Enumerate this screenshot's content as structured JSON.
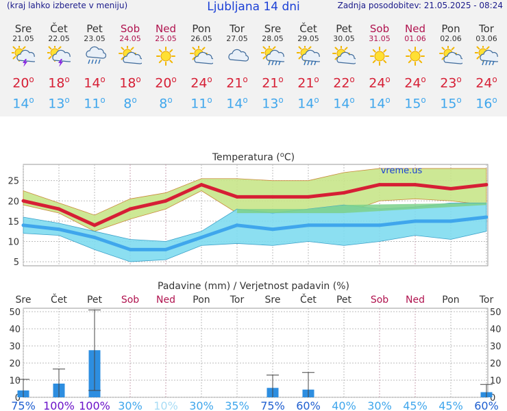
{
  "header": {
    "left_note": "(kraj lahko izberete v meniju)",
    "title": "Ljubljana 14 dni",
    "updated": "Zadnja posodobitev: 21.05.2025 - 08:24"
  },
  "days": [
    {
      "name": "Sre",
      "date": "21.05",
      "weekend": false,
      "icon": "sun-cloud-thunder-icon",
      "tmax": "20",
      "tmin": "14"
    },
    {
      "name": "Čet",
      "date": "22.05",
      "weekend": false,
      "icon": "sun-cloud-thunder-icon",
      "tmax": "18",
      "tmin": "13"
    },
    {
      "name": "Pet",
      "date": "23.05",
      "weekend": false,
      "icon": "cloud-rain-icon",
      "tmax": "14",
      "tmin": "11"
    },
    {
      "name": "Sob",
      "date": "24.05",
      "weekend": true,
      "icon": "sun-cloud-icon",
      "tmax": "18",
      "tmin": "8"
    },
    {
      "name": "Ned",
      "date": "25.05",
      "weekend": true,
      "icon": "sun-icon",
      "tmax": "20",
      "tmin": "8"
    },
    {
      "name": "Pon",
      "date": "26.05",
      "weekend": false,
      "icon": "sun-cloud-icon",
      "tmax": "24",
      "tmin": "11"
    },
    {
      "name": "Tor",
      "date": "27.05",
      "weekend": false,
      "icon": "cloud-icon",
      "tmax": "21",
      "tmin": "14"
    },
    {
      "name": "Sre",
      "date": "28.05",
      "weekend": false,
      "icon": "sun-cloud-rain-icon",
      "tmax": "21",
      "tmin": "13"
    },
    {
      "name": "Čet",
      "date": "29.05",
      "weekend": false,
      "icon": "sun-cloud-rain-icon",
      "tmax": "21",
      "tmin": "14"
    },
    {
      "name": "Pet",
      "date": "30.05",
      "weekend": false,
      "icon": "sun-cloud-icon",
      "tmax": "22",
      "tmin": "14"
    },
    {
      "name": "Sob",
      "date": "31.05",
      "weekend": true,
      "icon": "sun-icon",
      "tmax": "24",
      "tmin": "14"
    },
    {
      "name": "Ned",
      "date": "01.06",
      "weekend": true,
      "icon": "sun-icon",
      "tmax": "24",
      "tmin": "15"
    },
    {
      "name": "Pon",
      "date": "02.06",
      "weekend": false,
      "icon": "sun-cloud-icon",
      "tmax": "23",
      "tmin": "15"
    },
    {
      "name": "Tor",
      "date": "03.06",
      "weekend": false,
      "icon": "sun-cloud-rain-icon",
      "tmax": "24",
      "tmin": "16"
    }
  ],
  "colors": {
    "tmax": "#d61f35",
    "tmin": "#3fa6ec",
    "bar": "#2d8ee0",
    "weekend": "#b0124e",
    "band_max": "#c8e68a",
    "band_min": "#7fdcf0",
    "band_overlap": "#7cd18b"
  },
  "chart_data": [
    {
      "type": "line",
      "title": "Temperatura (°C)",
      "watermark": "vreme.us",
      "ylim": [
        4,
        29
      ],
      "yticks": [
        5,
        10,
        15,
        20,
        25
      ],
      "series": [
        {
          "name": "max",
          "values": [
            20,
            18,
            14,
            18,
            20,
            24,
            21,
            21,
            21,
            22,
            24,
            24,
            23,
            24
          ],
          "band_low": [
            19,
            17,
            12.5,
            15.5,
            18,
            22.5,
            17,
            17,
            17,
            17,
            20,
            20.5,
            20,
            19
          ],
          "band_high": [
            22.5,
            19.5,
            16.5,
            20.5,
            22,
            25.5,
            25.5,
            25,
            25,
            27,
            28,
            28,
            28,
            28
          ]
        },
        {
          "name": "min",
          "values": [
            14,
            13,
            11,
            8,
            8,
            11,
            14,
            13,
            14,
            14,
            14,
            15,
            15,
            16
          ],
          "band_low": [
            12,
            11.5,
            8,
            5,
            5.5,
            9,
            9.5,
            9,
            10,
            9,
            10,
            11.5,
            10.5,
            12.5
          ],
          "band_high": [
            16,
            14.5,
            12.5,
            10.5,
            10,
            12.5,
            18,
            17,
            18,
            19,
            18,
            18.5,
            19.5,
            19.5
          ]
        }
      ]
    },
    {
      "type": "bar",
      "title": "Padavine (mm) / Verjetnost padavin (%)",
      "ylim": [
        0,
        52
      ],
      "yticks": [
        0,
        10,
        20,
        30,
        40,
        50
      ],
      "values": [
        4,
        8,
        27.5,
        0,
        0,
        0,
        0,
        5.5,
        4.5,
        0,
        0,
        0,
        0,
        3
      ],
      "err_low": [
        0,
        0,
        4,
        0,
        0,
        0,
        0,
        0,
        0,
        0,
        0,
        0,
        0,
        0
      ],
      "err_high": [
        10.5,
        16.5,
        51,
        0,
        0,
        0,
        0,
        13,
        14.5,
        0,
        0,
        0,
        0,
        7.5
      ],
      "probability": [
        "75%",
        "100%",
        "100%",
        "30%",
        "10%",
        "30%",
        "35%",
        "75%",
        "60%",
        "40%",
        "30%",
        "45%",
        "45%",
        "60%"
      ]
    }
  ]
}
